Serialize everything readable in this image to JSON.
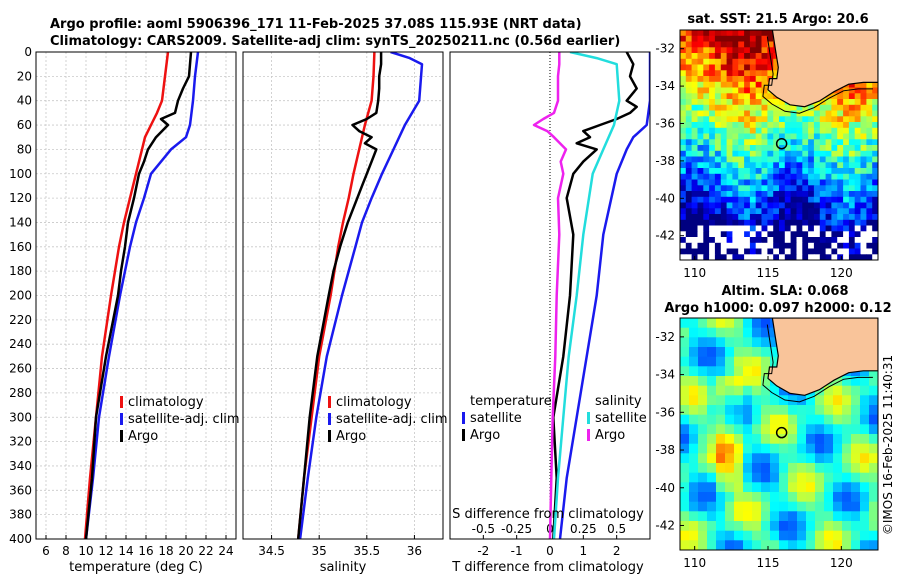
{
  "header": {
    "line1": "Argo profile: aoml 5906396_171 11-Feb-2025 37.08S 115.93E (NRT data)",
    "line2": "Climatology: CARS2009. Satellite-adj clim: synTS_20250211.nc (0.56d earlier)"
  },
  "copyright": "©IMOS 16-Feb-2025 11:40:31",
  "colors": {
    "climatology": "#ee1111",
    "satellite": "#1a1aee",
    "argo": "#000000",
    "t_diff_sat": "#1a1aee",
    "s_diff_sat": "#22dddd",
    "s_diff_argo": "#ee22ee",
    "land": "#f9c49a"
  },
  "chart_data": [
    {
      "type": "line",
      "title": "",
      "xlabel": "temperature (deg C)",
      "ylabel": "",
      "xlim": [
        5,
        25
      ],
      "ylim": [
        400,
        0
      ],
      "xticks": [
        6,
        8,
        10,
        12,
        14,
        16,
        18,
        20,
        22,
        24
      ],
      "yticks": [
        0,
        20,
        40,
        60,
        80,
        100,
        120,
        140,
        160,
        180,
        200,
        220,
        240,
        260,
        280,
        300,
        320,
        340,
        360,
        380,
        400
      ],
      "grid": true,
      "legend": [
        "climatology",
        "satellite-adj. clim",
        "Argo"
      ],
      "series": [
        {
          "name": "climatology",
          "color": "#ee1111",
          "depth": [
            0,
            20,
            40,
            50,
            60,
            70,
            80,
            100,
            120,
            140,
            160,
            200,
            250,
            300,
            350,
            400
          ],
          "values": [
            18.2,
            17.9,
            17.6,
            17.1,
            16.5,
            15.9,
            15.6,
            15.0,
            14.4,
            13.8,
            13.3,
            12.5,
            11.6,
            11.0,
            10.4,
            9.9
          ]
        },
        {
          "name": "satellite-adj. clim",
          "color": "#1a1aee",
          "depth": [
            0,
            20,
            40,
            60,
            70,
            80,
            100,
            120,
            140,
            160,
            200,
            250,
            300,
            350,
            400
          ],
          "values": [
            21.2,
            20.9,
            20.7,
            20.4,
            20.0,
            18.5,
            16.5,
            15.8,
            15.0,
            14.4,
            13.4,
            12.3,
            11.3,
            10.7,
            10.0
          ]
        },
        {
          "name": "Argo",
          "color": "#000000",
          "depth": [
            0,
            10,
            20,
            30,
            40,
            50,
            55,
            60,
            65,
            70,
            80,
            90,
            100,
            120,
            140,
            160,
            180,
            200,
            250,
            300,
            350,
            400
          ],
          "values": [
            20.5,
            20.4,
            20.3,
            19.7,
            19.2,
            18.9,
            17.5,
            18.2,
            17.6,
            17.0,
            16.2,
            15.8,
            15.3,
            14.8,
            14.2,
            13.9,
            13.5,
            13.2,
            12.0,
            11.0,
            10.6,
            10.0
          ]
        }
      ]
    },
    {
      "type": "line",
      "title": "",
      "xlabel": "salinity",
      "ylabel": "",
      "xlim": [
        34.2,
        36.3
      ],
      "ylim": [
        400,
        0
      ],
      "xticks": [
        34.5,
        35,
        35.5,
        36
      ],
      "grid": true,
      "legend": [
        "climatology",
        "satellite-adj. clim",
        "Argo"
      ],
      "series": [
        {
          "name": "climatology",
          "color": "#ee1111",
          "depth": [
            0,
            20,
            40,
            60,
            80,
            100,
            120,
            140,
            160,
            200,
            250,
            300,
            350,
            400
          ],
          "values": [
            35.58,
            35.57,
            35.55,
            35.48,
            35.42,
            35.36,
            35.31,
            35.25,
            35.2,
            35.12,
            35.0,
            34.92,
            34.84,
            34.78
          ]
        },
        {
          "name": "satellite-adj. clim",
          "color": "#1a1aee",
          "depth": [
            0,
            5,
            10,
            40,
            60,
            80,
            100,
            120,
            140,
            160,
            200,
            250,
            300,
            350,
            400
          ],
          "values": [
            35.75,
            35.95,
            36.08,
            36.05,
            35.9,
            35.78,
            35.66,
            35.55,
            35.45,
            35.38,
            35.24,
            35.08,
            34.97,
            34.88,
            34.8
          ]
        },
        {
          "name": "Argo",
          "color": "#000000",
          "depth": [
            0,
            10,
            20,
            30,
            40,
            50,
            55,
            60,
            65,
            70,
            75,
            80,
            90,
            100,
            110,
            120,
            140,
            160,
            180,
            200,
            250,
            300,
            350,
            400
          ],
          "values": [
            35.65,
            35.65,
            35.63,
            35.63,
            35.62,
            35.6,
            35.5,
            35.35,
            35.42,
            35.55,
            35.48,
            35.6,
            35.55,
            35.5,
            35.45,
            35.4,
            35.3,
            35.22,
            35.15,
            35.1,
            34.98,
            34.9,
            34.84,
            34.78
          ]
        }
      ]
    },
    {
      "type": "line",
      "title": "",
      "xlabel": "T difference from climatology",
      "xlabel_top": "S difference from climatology",
      "ylabel": "",
      "xlim": [
        -3,
        3
      ],
      "xlim_top": [
        -0.75,
        0.75
      ],
      "ylim": [
        400,
        0
      ],
      "xticks": [
        -2,
        -1,
        0,
        1,
        2
      ],
      "xticks_top": [
        "-0.5",
        "-0.25",
        "0",
        "0.25",
        "0.5"
      ],
      "grid": false,
      "legend_left_title": "temperature",
      "legend_left": [
        "satellite",
        "Argo"
      ],
      "legend_right_title": "salinity",
      "legend_right": [
        "satellite",
        "Argo"
      ],
      "series": [
        {
          "name": "temperature satellite",
          "axis": "T",
          "color": "#1a1aee",
          "depth": [
            0,
            40,
            60,
            70,
            80,
            100,
            150,
            200,
            250,
            300,
            350,
            400
          ],
          "values": [
            3.0,
            3.0,
            2.9,
            2.5,
            2.3,
            2.0,
            1.6,
            1.4,
            1.1,
            0.8,
            0.5,
            0.3
          ]
        },
        {
          "name": "temperature Argo",
          "axis": "T",
          "color": "#000000",
          "depth": [
            0,
            10,
            20,
            30,
            40,
            45,
            50,
            55,
            60,
            65,
            70,
            75,
            80,
            90,
            100,
            120,
            150,
            200,
            250,
            300,
            350,
            400
          ],
          "values": [
            2.3,
            2.5,
            2.4,
            2.6,
            2.3,
            2.6,
            2.4,
            2.0,
            1.5,
            1.0,
            1.2,
            0.8,
            1.4,
            1.0,
            0.7,
            0.5,
            0.7,
            0.6,
            0.4,
            0.1,
            0.2,
            0.1
          ]
        },
        {
          "name": "salinity satellite",
          "axis": "S",
          "color": "#22dddd",
          "depth": [
            0,
            5,
            10,
            40,
            60,
            80,
            100,
            150,
            200,
            250,
            300,
            350,
            400
          ],
          "values": [
            0.15,
            0.35,
            0.5,
            0.52,
            0.48,
            0.4,
            0.32,
            0.25,
            0.2,
            0.14,
            0.1,
            0.06,
            0.03
          ]
        },
        {
          "name": "salinity Argo",
          "axis": "S",
          "color": "#ee22ee",
          "depth": [
            0,
            10,
            20,
            40,
            50,
            55,
            60,
            65,
            70,
            80,
            90,
            100,
            120,
            150,
            200,
            250,
            300,
            350,
            400
          ],
          "values": [
            0.07,
            0.07,
            0.06,
            0.06,
            0.03,
            -0.05,
            -0.12,
            -0.02,
            0.03,
            0.12,
            0.08,
            0.1,
            0.06,
            0.07,
            0.05,
            0.04,
            0.02,
            0.01,
            0.0
          ]
        }
      ]
    },
    {
      "type": "heatmap",
      "title": "sat. SST: 21.5 Argo: 20.6",
      "xlim": [
        109,
        122.5
      ],
      "ylim": [
        -43.3,
        -31
      ],
      "xticks": [
        110,
        115,
        120
      ],
      "yticks": [
        -32,
        -34,
        -36,
        -38,
        -40,
        -42
      ],
      "marker": {
        "lon": 115.93,
        "lat": -37.08
      }
    },
    {
      "type": "heatmap",
      "title_line1": "Altim. SLA: 0.068",
      "title_line2": "Argo h1000: 0.097 h2000: 0.12",
      "xlim": [
        109,
        122.5
      ],
      "ylim": [
        -43.3,
        -31
      ],
      "xticks": [
        110,
        115,
        120
      ],
      "yticks": [
        -32,
        -34,
        -36,
        -38,
        -40,
        -42
      ],
      "marker": {
        "lon": 115.93,
        "lat": -37.08
      }
    }
  ]
}
